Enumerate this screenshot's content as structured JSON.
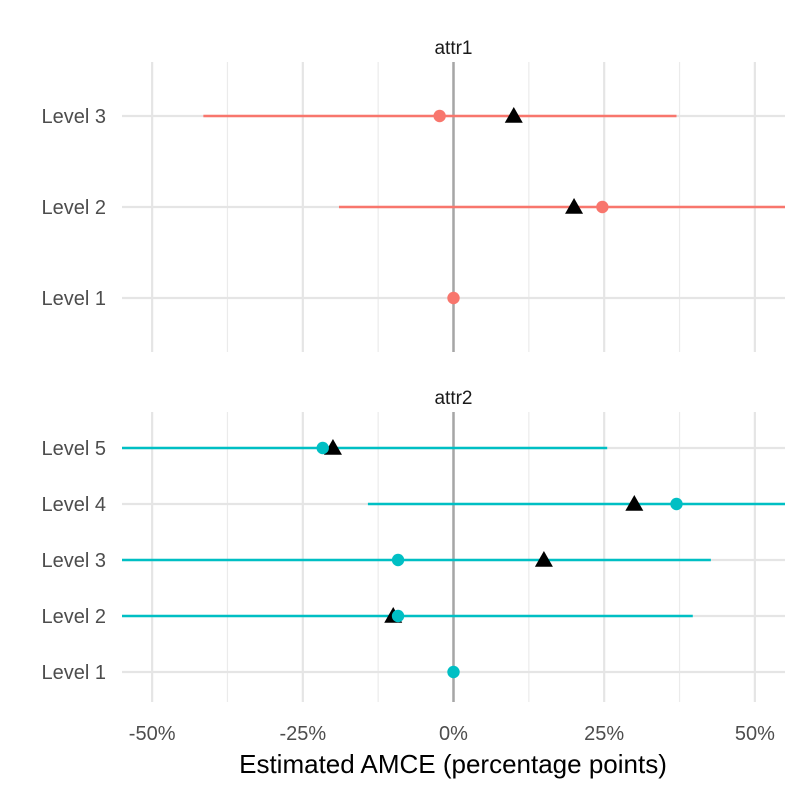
{
  "chart_data": {
    "type": "scatter",
    "xlabel": "Estimated AMCE (percentage points)",
    "ylabel": "",
    "xlim": [
      -55,
      55
    ],
    "x_ticks": [
      -50,
      -25,
      0,
      25,
      50
    ],
    "x_tick_labels": [
      "-50%",
      "-25%",
      "0%",
      "25%",
      "50%"
    ],
    "grid": true,
    "legend": "none",
    "colors": {
      "attr1": "#F8766D",
      "attr2": "#00BFC4",
      "triangle": "#000000",
      "zero_line": "#a6a6a6"
    },
    "panels": [
      {
        "name": "attr1",
        "levels": [
          "Level 1",
          "Level 2",
          "Level 3"
        ],
        "estimates": [
          {
            "level": "Level 1",
            "point": 0,
            "lower": 0,
            "upper": 0,
            "triangle": null
          },
          {
            "level": "Level 2",
            "point": 24.7,
            "lower": -19,
            "upper": 55,
            "triangle": 20
          },
          {
            "level": "Level 3",
            "point": -2.3,
            "lower": -41.5,
            "upper": 37,
            "triangle": 10
          }
        ]
      },
      {
        "name": "attr2",
        "levels": [
          "Level 1",
          "Level 2",
          "Level 3",
          "Level 4",
          "Level 5"
        ],
        "estimates": [
          {
            "level": "Level 1",
            "point": 0,
            "lower": 0,
            "upper": 0,
            "triangle": null
          },
          {
            "level": "Level 2",
            "point": -9.2,
            "lower": -55,
            "upper": 39.7,
            "triangle": -10
          },
          {
            "level": "Level 3",
            "point": -9.2,
            "lower": -55,
            "upper": 42.7,
            "triangle": 15
          },
          {
            "level": "Level 4",
            "point": 37,
            "lower": -14.2,
            "upper": 55,
            "triangle": 30
          },
          {
            "level": "Level 5",
            "point": -21.7,
            "lower": -55,
            "upper": 25.5,
            "triangle": -20
          }
        ]
      }
    ]
  }
}
